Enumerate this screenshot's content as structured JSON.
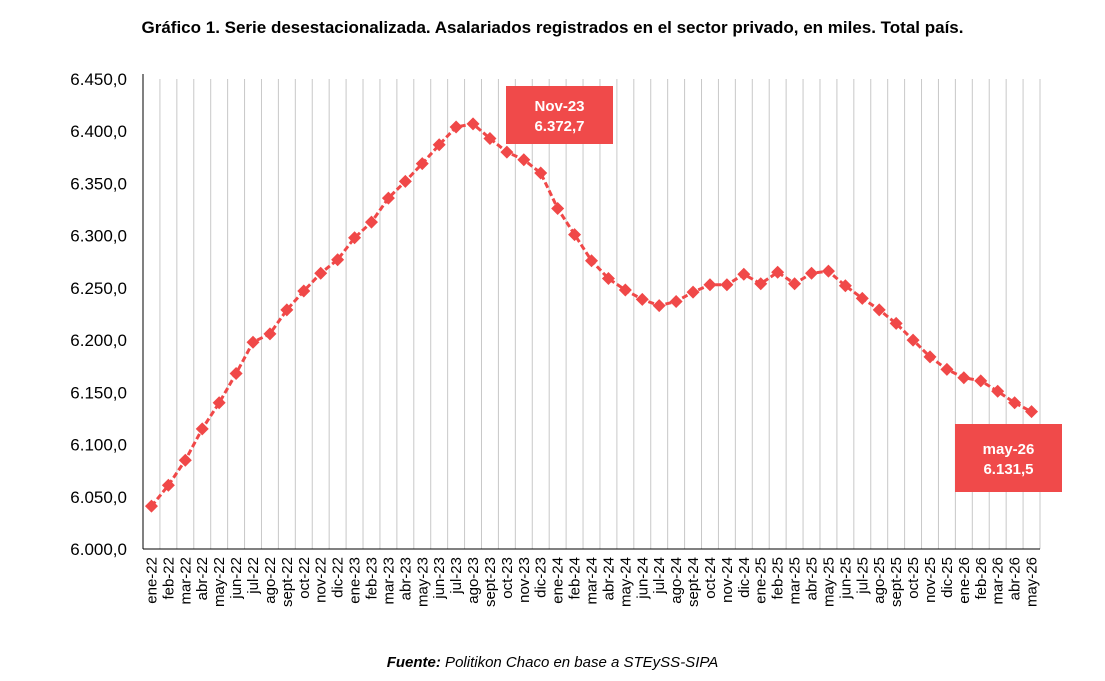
{
  "title": "Gráfico 1. Serie desestacionalizada. Asalariados registrados en el sector privado, en miles. Total país.",
  "footer": {
    "source_label": "Fuente:",
    "source_text": " Politikon Chaco en base a STEySS-SIPA"
  },
  "colors": {
    "series": "#f04848",
    "callout": "#f04a4a",
    "grid": "#c8c8c8",
    "axis": "#000000"
  },
  "chart_data": {
    "type": "line",
    "title": "Gráfico 1. Serie desestacionalizada. Asalariados registrados en el sector privado, en miles. Total país.",
    "xlabel": "",
    "ylabel": "",
    "ylim": [
      6000,
      6450
    ],
    "ytick_step": 50,
    "ytick_labels": [
      "6.000,0",
      "6.050,0",
      "6.100,0",
      "6.150,0",
      "6.200,0",
      "6.250,0",
      "6.300,0",
      "6.350,0",
      "6.400,0",
      "6.450,0"
    ],
    "grid": "vertical",
    "marker": "diamond",
    "line_style": "dashed",
    "categories": [
      "ene-22",
      "feb-22",
      "mar-22",
      "abr-22",
      "may-22",
      "jun-22",
      "jul-22",
      "ago-22",
      "sept-22",
      "oct-22",
      "nov-22",
      "dic-22",
      "ene-23",
      "feb-23",
      "mar-23",
      "abr-23",
      "may-23",
      "jun-23",
      "jul-23",
      "ago-23",
      "sept-23",
      "oct-23",
      "nov-23",
      "dic-23",
      "ene-24",
      "feb-24",
      "mar-24",
      "abr-24",
      "may-24",
      "jun-24",
      "jul-24",
      "ago-24",
      "sept-24",
      "oct-24",
      "nov-24",
      "dic-24",
      "ene-25",
      "feb-25",
      "mar-25",
      "abr-25",
      "may-25",
      "jun-25",
      "jul-25",
      "ago-25",
      "sept-25",
      "oct-25",
      "nov-25",
      "dic-25",
      "ene-26",
      "feb-26",
      "mar-26",
      "abr-26",
      "may-26"
    ],
    "series": [
      {
        "values": [
          6041,
          6061,
          6085,
          6115,
          6140,
          6168,
          6198,
          6206,
          6229,
          6247,
          6264,
          6277,
          6298,
          6313,
          6336,
          6352,
          6369,
          6387,
          6404,
          6407,
          6393,
          6380,
          6372.7,
          6360,
          6326,
          6301,
          6276,
          6259,
          6248,
          6239,
          6233,
          6237,
          6246,
          6253,
          6253,
          6263,
          6254,
          6265,
          6254,
          6264,
          6266,
          6252,
          6240,
          6229,
          6216,
          6200,
          6184,
          6172,
          6164,
          6161,
          6151,
          6140,
          6131.5
        ]
      }
    ],
    "annotations": [
      {
        "category": "nov-23",
        "label": "Nov-23",
        "value_text": "6.372,7"
      },
      {
        "category": "may-26",
        "label": "may-26",
        "value_text": "6.131,5"
      }
    ]
  }
}
